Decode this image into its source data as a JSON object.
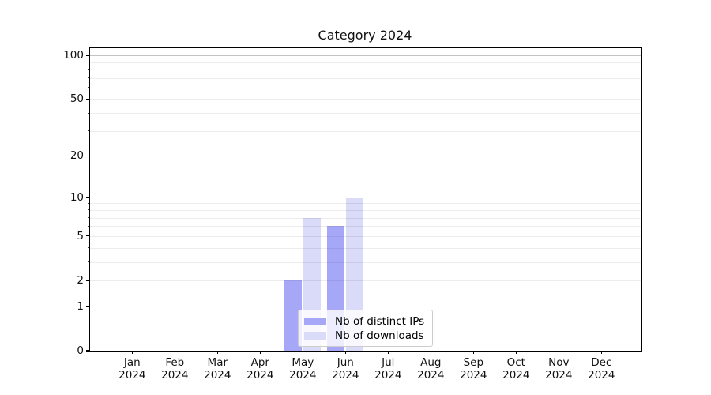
{
  "chart_data": {
    "type": "bar",
    "title": "Category 2024",
    "x_tick_labels": [
      [
        "Jan",
        "2024"
      ],
      [
        "Feb",
        "2024"
      ],
      [
        "Mar",
        "2024"
      ],
      [
        "Apr",
        "2024"
      ],
      [
        "May",
        "2024"
      ],
      [
        "Jun",
        "2024"
      ],
      [
        "Jul",
        "2024"
      ],
      [
        "Aug",
        "2024"
      ],
      [
        "Sep",
        "2024"
      ],
      [
        "Oct",
        "2024"
      ],
      [
        "Nov",
        "2024"
      ],
      [
        "Dec",
        "2024"
      ]
    ],
    "series": [
      {
        "name": "Nb of distinct IPs",
        "color": "#a7a7f8",
        "values": [
          0,
          0,
          0,
          0,
          2,
          6,
          0,
          0,
          0,
          0,
          0,
          0
        ]
      },
      {
        "name": "Nb of downloads",
        "color": "#dadaf9",
        "values": [
          0,
          0,
          0,
          0,
          7,
          10,
          0,
          0,
          0,
          0,
          0,
          0
        ]
      }
    ],
    "yscale": "log1p",
    "ylim": [
      0,
      112
    ],
    "y_major_ticks": [
      0,
      1,
      2,
      5,
      10,
      20,
      50,
      100
    ],
    "y_minor_ticks": [
      3,
      4,
      6,
      7,
      8,
      9,
      30,
      40,
      60,
      70,
      80,
      90
    ],
    "grid": {
      "major_values": [
        1,
        10,
        100
      ],
      "major_color": "rgba(0,0,0,0.24)",
      "minor_color": "rgba(0,0,0,0.075)"
    },
    "legend_position": "lower center",
    "axis_color": "#000000"
  }
}
